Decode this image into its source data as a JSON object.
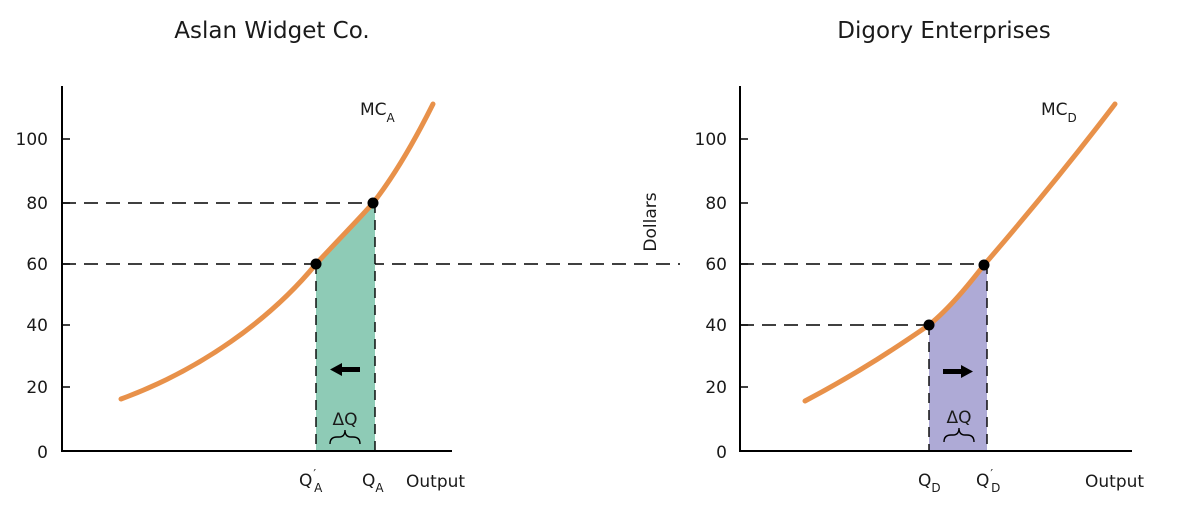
{
  "colors": {
    "curve": "#e8914a",
    "shade_left": "#8ecbb6",
    "shade_right": "#aeaad6",
    "axis": "#000000",
    "dash": "#000000"
  },
  "chart_data": [
    {
      "type": "line",
      "title": "Aslan Widget Co.",
      "xlabel": "Output",
      "ylabel": "",
      "ylim": [
        0,
        117
      ],
      "y_ticks": [
        "0",
        "20",
        "40",
        "60",
        "80",
        "100"
      ],
      "y_tick_values": [
        0,
        20,
        40,
        60,
        80,
        100
      ],
      "curve_label": "MC",
      "curve_label_sub": "A",
      "x_labels": [
        {
          "main": "Q",
          "sup": "′",
          "sub": "A"
        },
        {
          "main": "Q",
          "sup": "",
          "sub": "A"
        }
      ],
      "points": [
        {
          "label": "Q'A",
          "y": 60
        },
        {
          "label": "QA",
          "y": 80
        }
      ],
      "shaded_label": "ΔQ",
      "arrow_direction": "left"
    },
    {
      "type": "line",
      "title": "Digory Enterprises",
      "xlabel": "Output",
      "ylabel": "Dollars",
      "ylim": [
        0,
        117
      ],
      "y_ticks": [
        "0",
        "20",
        "40",
        "60",
        "80",
        "100"
      ],
      "y_tick_values": [
        0,
        20,
        40,
        60,
        80,
        100
      ],
      "curve_label": "MC",
      "curve_label_sub": "D",
      "x_labels": [
        {
          "main": "Q",
          "sup": "",
          "sub": "D"
        },
        {
          "main": "Q",
          "sup": "′",
          "sub": "D"
        }
      ],
      "points": [
        {
          "label": "QD",
          "y": 40
        },
        {
          "label": "Q'D",
          "y": 60
        }
      ],
      "shaded_label": "ΔQ",
      "arrow_direction": "right"
    }
  ]
}
